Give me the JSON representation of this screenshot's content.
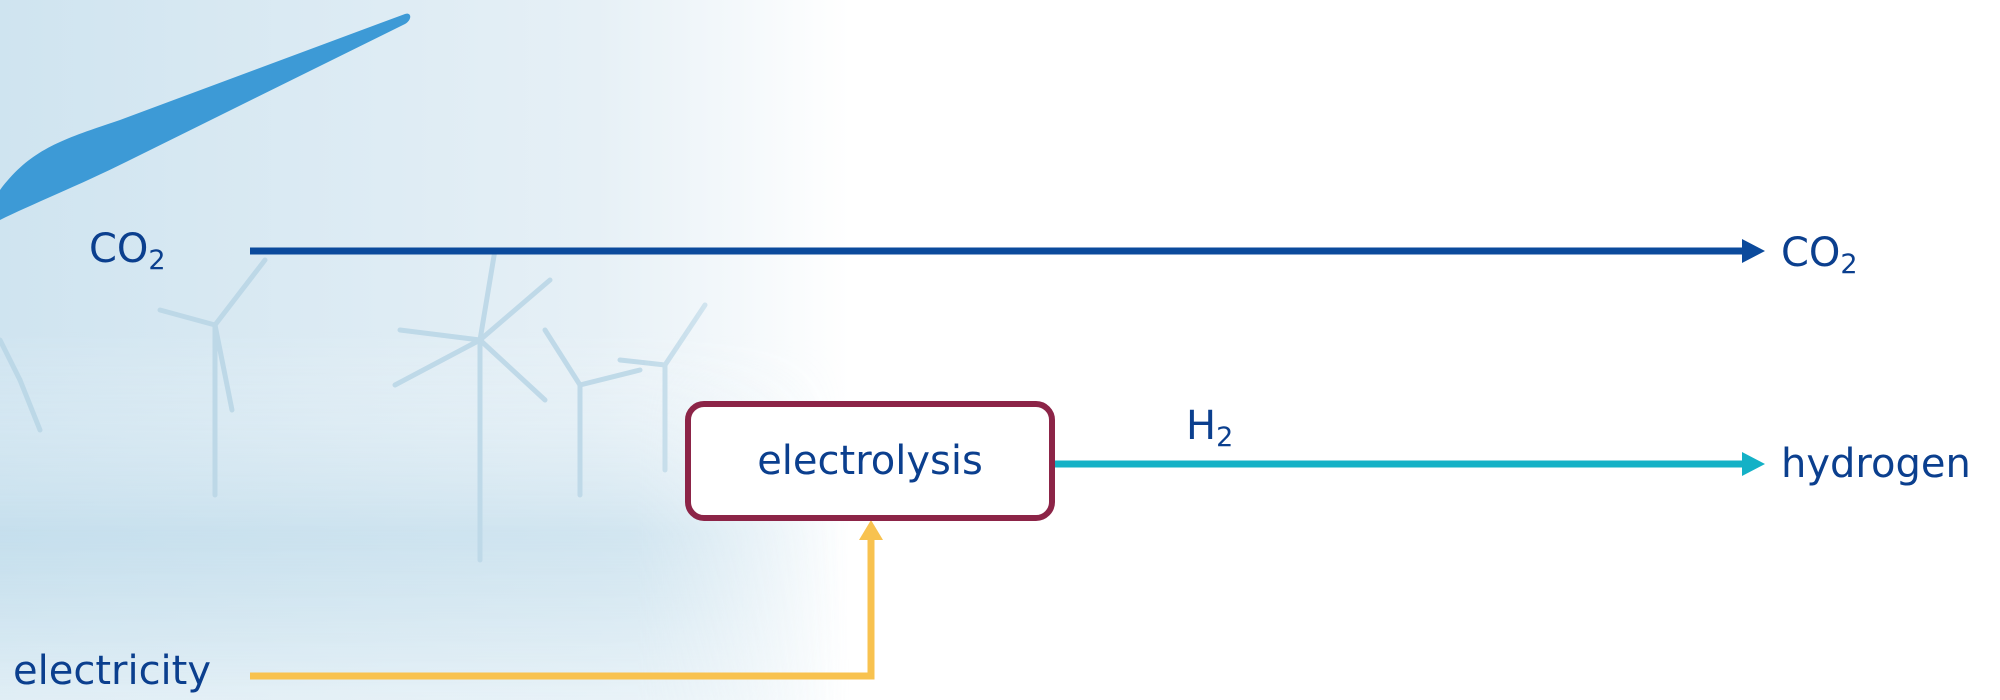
{
  "labels": {
    "co2_in": {
      "main": "CO",
      "sub": "2"
    },
    "co2_out": {
      "main": "CO",
      "sub": "2"
    },
    "h2": {
      "main": "H",
      "sub": "2"
    },
    "hydrogen": "hydrogen",
    "electricity": "electricity"
  },
  "nodes": [
    {
      "label": "electrolysis"
    }
  ]
}
